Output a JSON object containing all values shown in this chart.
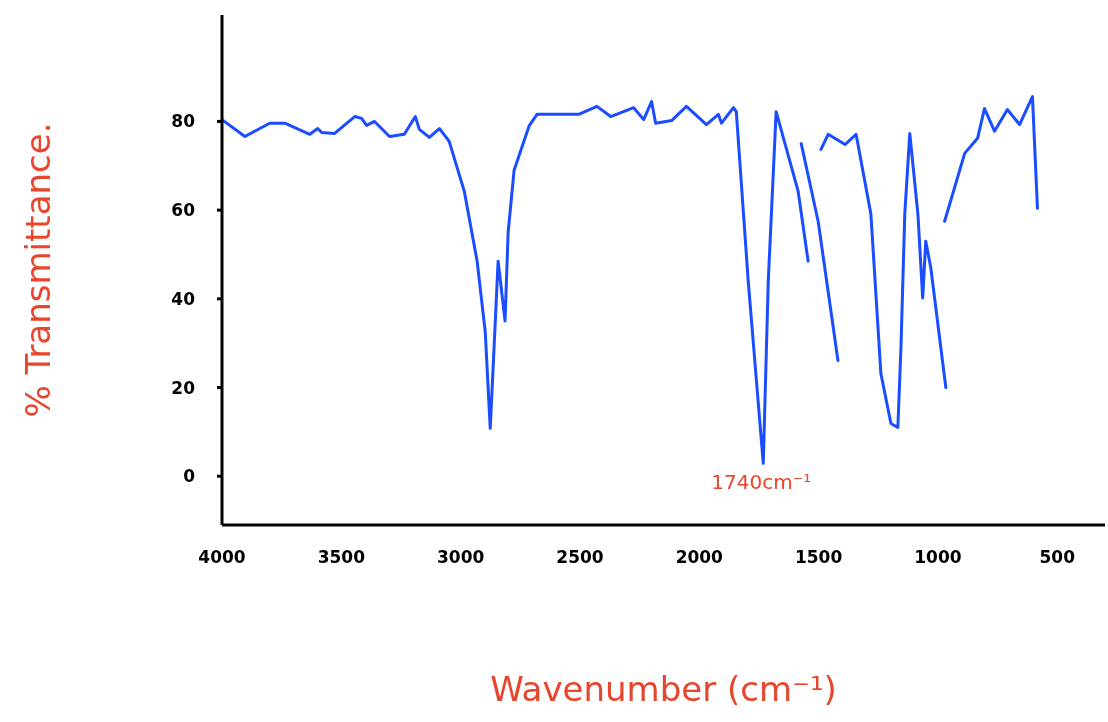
{
  "chart_data": {
    "type": "line",
    "xlabel": "Wavenumber (cm⁻¹)",
    "ylabel": "% Transmittance.",
    "series": [
      {
        "color": "#1a4dff",
        "x": [
          4000,
          3904,
          3800,
          3737,
          3632,
          3599,
          3582,
          3528,
          3444,
          3415,
          3394,
          3361,
          3298,
          3236,
          3190,
          3173,
          3131,
          3089,
          3048,
          2985,
          2931,
          2897,
          2876,
          2843,
          2814,
          2801,
          2776,
          2713,
          2680,
          2505,
          2429,
          2371,
          2275,
          2233,
          2200,
          2183,
          2116,
          2054,
          1970,
          1920,
          1907,
          1857,
          1845,
          1795,
          1732,
          1711,
          1678,
          1586,
          1544
        ],
        "values": [
          80.4,
          76.6,
          79.6,
          79.6,
          77.1,
          78.4,
          77.5,
          77.3,
          81.1,
          80.7,
          79.1,
          80,
          76.6,
          77.1,
          81.1,
          78.2,
          76.4,
          78.4,
          75.5,
          64.3,
          48.5,
          32.6,
          10.8,
          48.5,
          35,
          55,
          69,
          79,
          81.6,
          81.6,
          83.4,
          81.1,
          83.1,
          80.4,
          84.5,
          79.6,
          80.2,
          83.4,
          79.3,
          81.6,
          79.6,
          83.1,
          82.2,
          44,
          2.9,
          44,
          82.2,
          64.3,
          48.5
        ]
      },
      {
        "color": "#1a4dff",
        "x": [
          1573,
          1502,
          1419
        ],
        "values": [
          75,
          57.5,
          26.1
        ]
      },
      {
        "color": "#1a4dff",
        "x": [
          1490,
          1460,
          1389,
          1343,
          1281,
          1239,
          1197,
          1168,
          1155,
          1139,
          1118,
          1084,
          1064,
          1051,
          1030,
          967
        ],
        "values": [
          73.7,
          77.1,
          74.8,
          77.1,
          59.1,
          23.1,
          11.9,
          11,
          29,
          59.1,
          77.3,
          59.1,
          40.2,
          53,
          47,
          20
        ]
      },
      {
        "color": "#1a4dff",
        "x": [
          972,
          888,
          834,
          805,
          763,
          709,
          658,
          604,
          583
        ],
        "values": [
          57.5,
          72.8,
          76.2,
          82.9,
          77.8,
          82.7,
          79.3,
          85.6,
          60.4
        ]
      }
    ],
    "xlim": [
      4000,
      300
    ],
    "xticks": [
      4000,
      3500,
      3000,
      2500,
      2000,
      1500,
      1000,
      500
    ],
    "ylim": [
      -11,
      104
    ],
    "yticks": [
      0,
      20,
      40,
      60,
      80
    ],
    "grid": false,
    "marker": "none",
    "line_style": "solid",
    "annotations": [
      {
        "text": "1740cm⁻¹",
        "x": 1740,
        "y": 3
      }
    ]
  }
}
